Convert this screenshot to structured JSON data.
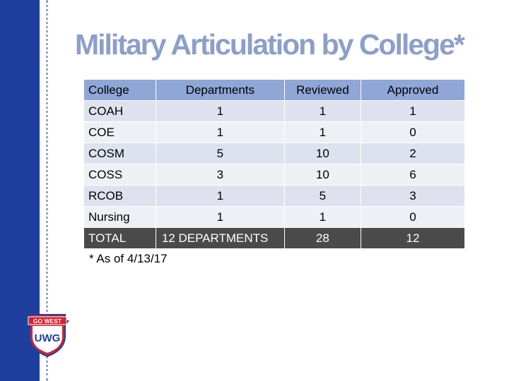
{
  "slide": {
    "title": "Military Articulation by College*",
    "footnote": "* As of 4/13/17"
  },
  "table": {
    "headers": [
      "College",
      "Departments",
      "Reviewed",
      "Approved"
    ],
    "rows": [
      [
        "COAH",
        "1",
        "1",
        "1"
      ],
      [
        "COE",
        "1",
        "1",
        "0"
      ],
      [
        "COSM",
        "5",
        "10",
        "2"
      ],
      [
        "COSS",
        "3",
        "10",
        "6"
      ],
      [
        "RCOB",
        "1",
        "5",
        "3"
      ],
      [
        "Nursing",
        "1",
        "1",
        "0"
      ]
    ],
    "total": [
      "TOTAL",
      "12 DEPARTMENTS",
      "28",
      "12"
    ]
  },
  "logo": {
    "banner_text": "GO WEST",
    "shield_text": "UWG",
    "colors": {
      "red": "#d3232e",
      "blue": "#1f3f9f"
    }
  },
  "colors": {
    "sidebar": "#1f3f9f",
    "title": "#8c9fc9",
    "header_row": "#8fa6d6",
    "row_odd": "#dde2ee",
    "row_even": "#eef0f5",
    "total_row": "#4a4a4a"
  }
}
